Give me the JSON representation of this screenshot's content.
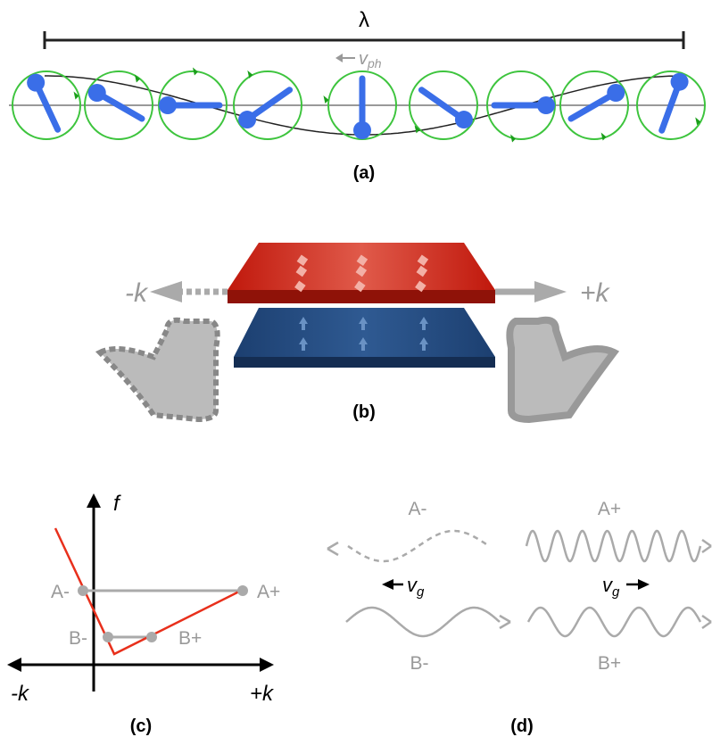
{
  "panel_a": {
    "wavelength_label": "λ",
    "phase_velocity": {
      "symbol": "v",
      "subscript": "ph"
    },
    "caption": "(a)"
  },
  "panel_b": {
    "left_label": "-k",
    "right_label": "+k",
    "caption": "(b)"
  },
  "panel_c": {
    "y_axis_label": "f",
    "x_axis_left": "-k",
    "x_axis_right": "+k",
    "point_a_minus": "A-",
    "point_a_plus": "A+",
    "point_b_minus": "B-",
    "point_b_plus": "B+",
    "caption": "(c)"
  },
  "panel_d": {
    "wave_a_minus": "A-",
    "wave_a_plus": "A+",
    "wave_b_minus": "B-",
    "wave_b_plus": "B+",
    "left_group_velocity": {
      "symbol": "v",
      "subscript": "g"
    },
    "right_group_velocity": {
      "symbol": "v",
      "subscript": "g"
    },
    "caption": "(d)"
  }
}
